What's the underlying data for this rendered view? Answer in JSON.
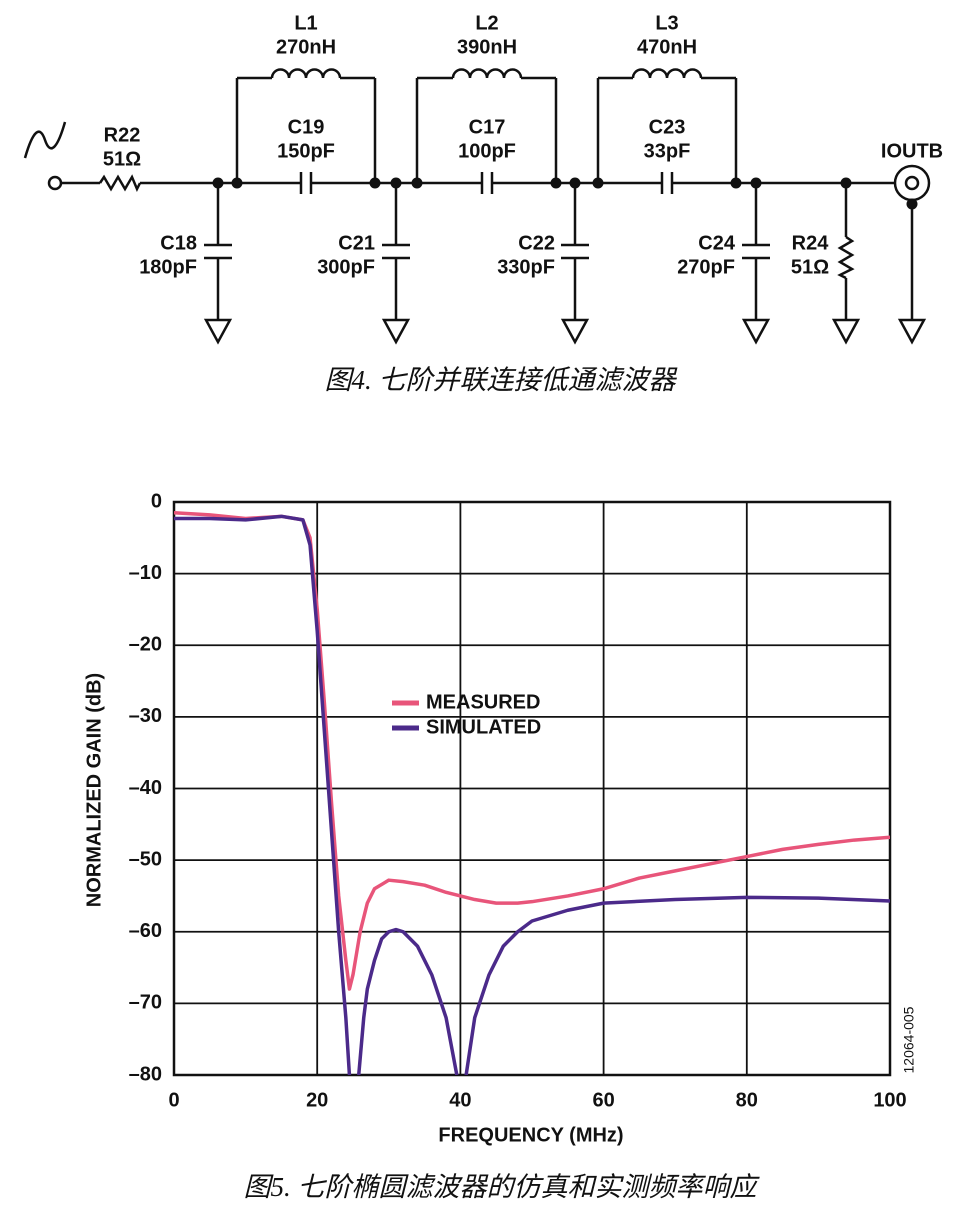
{
  "circuit": {
    "components": [
      {
        "name": "R22",
        "value": "51Ω"
      },
      {
        "name": "L1",
        "value": "270nH"
      },
      {
        "name": "C19",
        "value": "150pF"
      },
      {
        "name": "L2",
        "value": "390nH"
      },
      {
        "name": "C17",
        "value": "100pF"
      },
      {
        "name": "L3",
        "value": "470nH"
      },
      {
        "name": "C23",
        "value": "33pF"
      },
      {
        "name": "C18",
        "value": "180pF"
      },
      {
        "name": "C21",
        "value": "300pF"
      },
      {
        "name": "C22",
        "value": "330pF"
      },
      {
        "name": "C24",
        "value": "270pF"
      },
      {
        "name": "R24",
        "value": "51Ω"
      }
    ],
    "output": "IOUTB",
    "caption": "图4. 七阶并联连接低通滤波器"
  },
  "chart_data": {
    "type": "line",
    "caption": "图5. 七阶椭圆滤波器的仿真和实测频率响应",
    "xlabel": "FREQUENCY (MHz)",
    "ylabel": "NORMALIZED GAIN (dB)",
    "annotation": "12064-005",
    "xlim": [
      0,
      100
    ],
    "ylim": [
      -80,
      0
    ],
    "xticks": [
      0,
      20,
      40,
      60,
      80,
      100
    ],
    "yticks": [
      0,
      {
        "value": -10,
        "label": "–10"
      },
      {
        "value": -20,
        "label": "–20"
      },
      {
        "value": -30,
        "label": "–30"
      },
      {
        "value": -40,
        "label": "–40"
      },
      {
        "value": -50,
        "label": "–50"
      },
      {
        "value": -60,
        "label": "–60"
      },
      {
        "value": -70,
        "label": "–70"
      },
      {
        "value": -80,
        "label": "–80"
      }
    ],
    "grid": true,
    "series": [
      {
        "name": "MEASURED",
        "color": "#e8557a",
        "x": [
          0,
          5,
          10,
          15,
          18,
          19,
          20,
          21,
          22,
          23,
          24,
          24.5,
          25,
          26,
          27,
          28,
          30,
          32,
          35,
          38,
          40,
          42,
          45,
          48,
          50,
          55,
          60,
          65,
          70,
          75,
          80,
          85,
          90,
          95,
          100
        ],
        "values": [
          -1.5,
          -1.8,
          -2.3,
          -2,
          -2.5,
          -5,
          -15,
          -28,
          -42,
          -55,
          -64,
          -68,
          -66,
          -60,
          -56,
          -54,
          -52.8,
          -53,
          -53.5,
          -54.5,
          -55,
          -55.5,
          -56,
          -56,
          -55.8,
          -55,
          -54,
          -52.5,
          -51.5,
          -50.5,
          -49.5,
          -48.5,
          -47.8,
          -47.2,
          -46.8
        ]
      },
      {
        "name": "SIMULATED",
        "color": "#4b2a8a",
        "x": [
          0,
          5,
          10,
          15,
          18,
          19,
          20,
          21,
          22,
          23,
          24,
          24.5,
          25.2,
          25.8,
          26.5,
          27,
          28,
          29,
          30,
          31,
          32,
          34,
          36,
          38,
          39.5,
          40.2,
          40.8,
          42,
          44,
          46,
          48,
          50,
          55,
          60,
          70,
          80,
          90,
          100
        ],
        "values": [
          -2.3,
          -2.3,
          -2.5,
          -2,
          -2.5,
          -6,
          -18,
          -32,
          -46,
          -60,
          -72,
          -80,
          null,
          -80,
          -72,
          -68,
          -64,
          -61,
          -60,
          -59.7,
          -60,
          -62,
          -66,
          -72,
          -80,
          null,
          -80,
          -72,
          -66,
          -62,
          -60,
          -58.5,
          -57,
          -56,
          -55.5,
          -55.2,
          -55.3,
          -55.7
        ]
      }
    ]
  }
}
